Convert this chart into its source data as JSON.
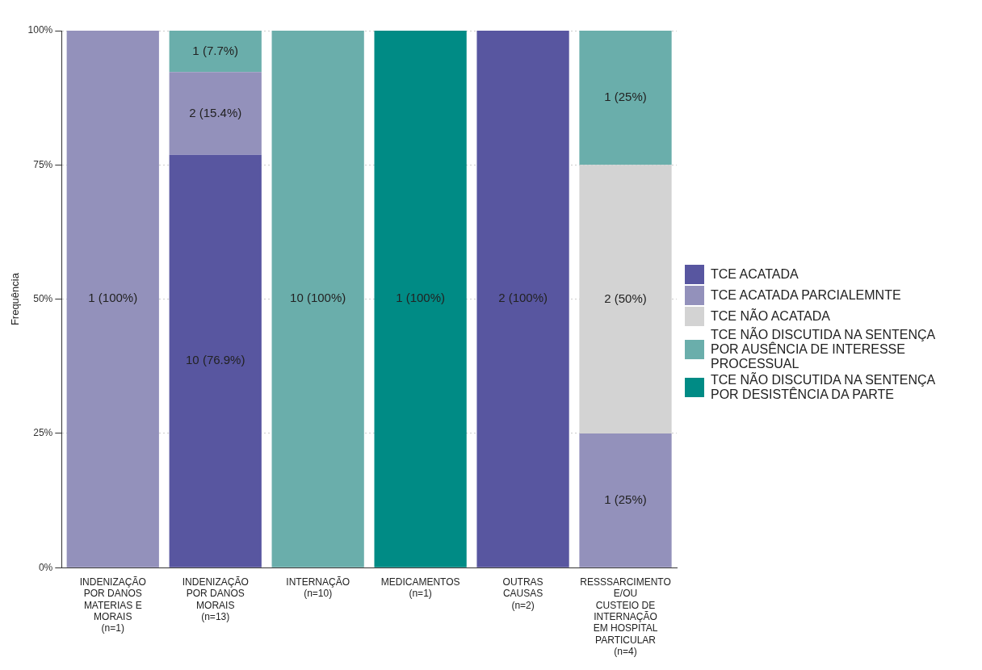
{
  "chart_data": {
    "type": "bar",
    "stacked": true,
    "ylabel": "Frequência",
    "categories": [
      "INDENIZAÇÃO\nPOR DANOS\nMATERIAS E\nMORAIS\n(n=1)",
      "INDENIZAÇÃO\nPOR DANOS\nMORAIS\n(n=13)",
      "INTERNAÇÃO\n(n=10)",
      "MEDICAMENTOS\n(n=1)",
      "OUTRAS\nCAUSAS\n(n=2)",
      "RESSSARCIMENTO\nE/OU\nCUSTEIO DE\nINTERNAÇÃO\nEM HOSPITAL\nPARTICULAR\n(n=4)"
    ],
    "series": [
      {
        "name": "TCE ACATADA",
        "color": "#5856a0",
        "values": [
          null,
          76.9,
          null,
          null,
          100,
          null
        ],
        "value_labels": [
          null,
          "10 (76.9%)",
          null,
          null,
          "2 (100%)",
          null
        ]
      },
      {
        "name": "TCE ACATADA PARCIALEMNTE",
        "color": "#9391bb",
        "values": [
          100,
          15.4,
          null,
          null,
          null,
          25
        ],
        "value_labels": [
          "1 (100%)",
          "2 (15.4%)",
          null,
          null,
          null,
          "1 (25%)"
        ]
      },
      {
        "name": "TCE NÃO ACATADA",
        "color": "#d3d3d3",
        "values": [
          null,
          null,
          null,
          null,
          null,
          50
        ],
        "value_labels": [
          null,
          null,
          null,
          null,
          null,
          "2 (50%)"
        ]
      },
      {
        "name": "TCE NÃO DISCUTIDA NA SENTENÇA POR AUSÊNCIA DE INTERESSE PROCESSUAL",
        "color": "#6aaeab",
        "values": [
          null,
          7.7,
          100,
          null,
          null,
          25
        ],
        "value_labels": [
          null,
          "1 (7.7%)",
          "10 (100%)",
          null,
          null,
          "1 (25%)"
        ]
      },
      {
        "name": "TCE NÃO DISCUTIDA NA SENTENÇA POR DESISTÊNCIA DA PARTE",
        "color": "#008b85",
        "values": [
          null,
          null,
          null,
          100,
          null,
          null
        ],
        "value_labels": [
          null,
          null,
          null,
          "1 (100%)",
          null,
          null
        ]
      }
    ],
    "ylim": [
      0,
      100
    ],
    "yticks": [
      {
        "value": 0,
        "label": "0%"
      },
      {
        "value": 25,
        "label": "25%"
      },
      {
        "value": 50,
        "label": "50%"
      },
      {
        "value": 75,
        "label": "75%"
      },
      {
        "value": 100,
        "label": "100%"
      }
    ],
    "grid": "y",
    "legend": "right"
  }
}
